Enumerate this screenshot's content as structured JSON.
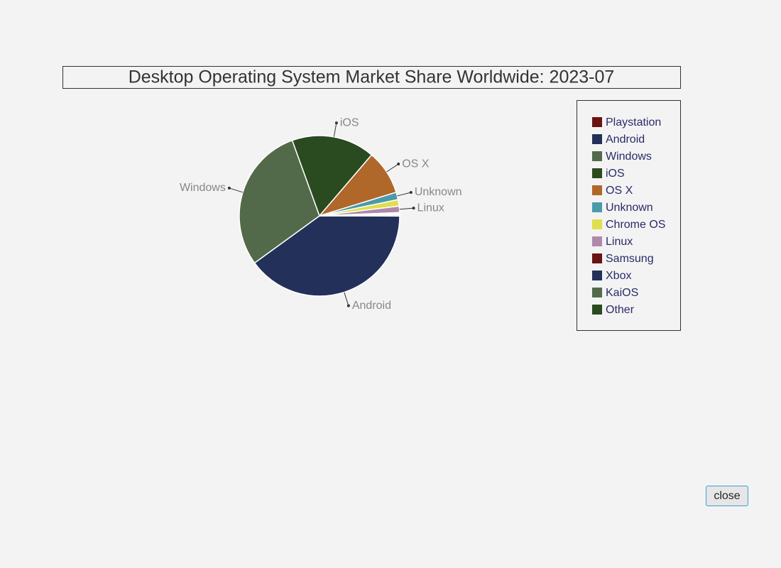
{
  "chart_data": {
    "type": "pie",
    "title": "Desktop Operating System Market Share Worldwide: 2023-07",
    "categories": [
      "Playstation",
      "Android",
      "Windows",
      "iOS",
      "OS X",
      "Unknown",
      "Chrome OS",
      "Linux",
      "Samsung",
      "Xbox",
      "KaiOS",
      "Other"
    ],
    "values": [
      0.05,
      40,
      29.5,
      16.8,
      9,
      1.5,
      1.3,
      1.3,
      0.2,
      0.15,
      0.05,
      0.25
    ],
    "colors": [
      "#6b1212",
      "#22305a",
      "#526a4a",
      "#2a4a20",
      "#b0672a",
      "#4a9aaa",
      "#dede50",
      "#b088aa",
      "#6b1212",
      "#22305a",
      "#526a4a",
      "#2a4a20"
    ],
    "show_label": [
      false,
      true,
      true,
      true,
      true,
      true,
      false,
      true,
      false,
      false,
      false,
      false
    ],
    "legend": "right"
  },
  "button": "close"
}
